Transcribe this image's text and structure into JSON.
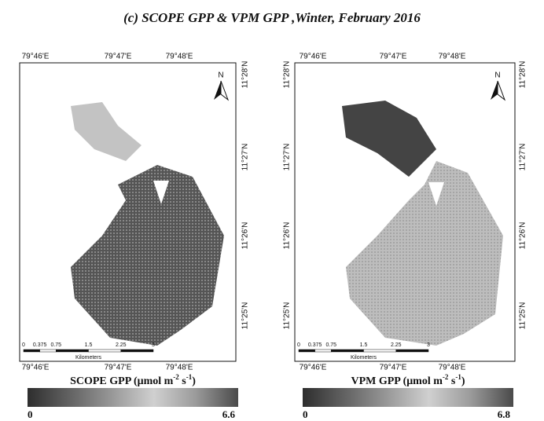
{
  "title": "(c) SCOPE GPP & VPM GPP ,Winter, February 2016",
  "axes": {
    "lon": [
      "79°46'E",
      "79°47'E",
      "79°48'E"
    ],
    "lat": [
      "11°28'N",
      "11°27'N",
      "11°26'N",
      "11°25'N"
    ]
  },
  "north": "N",
  "scale_bar": {
    "ticks": [
      "0",
      "0.375",
      "0.75",
      "1.5",
      "2.25",
      "3"
    ],
    "unit": "Kilometers"
  },
  "maps": [
    {
      "colorbar": {
        "label": [
          "SCOPE GPP (μmol m",
          "-2",
          " s",
          "-1",
          ")"
        ],
        "min": 0,
        "max": 6.6
      }
    },
    {
      "colorbar": {
        "label": [
          "VPM GPP (μmol m",
          "-2",
          " s",
          "-1",
          ")"
        ],
        "min": 0,
        "max": 6.8
      }
    }
  ]
}
